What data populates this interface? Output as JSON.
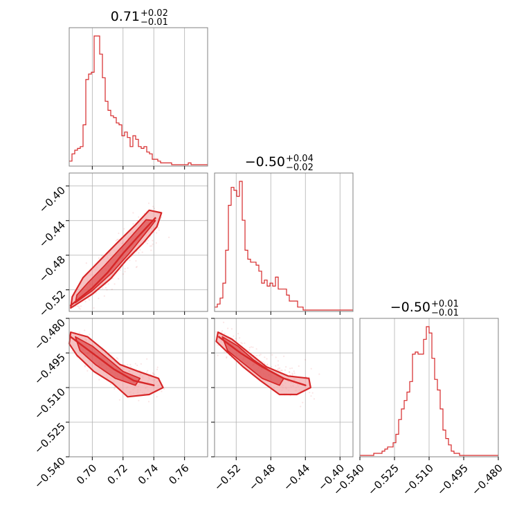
{
  "figure": {
    "color": "#d62728",
    "fill_color": "#f2a8aa",
    "grid_color": "#b0b0b0",
    "frame_color": "#808080"
  },
  "chart_data": [
    {
      "type": "histogram",
      "panel": "diag-0",
      "parameter_index": 0,
      "title": {
        "value": "0.71",
        "plus": "+0.02",
        "minus": "−0.01"
      },
      "x_range": [
        0.685,
        0.775
      ],
      "x_ticks": [
        0.7,
        0.72,
        0.74,
        0.76
      ],
      "x_tick_labels": [
        "0.70",
        "0.72",
        "0.74",
        "0.76"
      ],
      "bin_start": 0.685,
      "bin_width": 0.0018,
      "counts": [
        2,
        6,
        8,
        9,
        10,
        22,
        47,
        50,
        51,
        71,
        71,
        61,
        48,
        35,
        30,
        27,
        26,
        23,
        22,
        16,
        18,
        15,
        10,
        16,
        14,
        10,
        9,
        10,
        7,
        6,
        3,
        3,
        2,
        1,
        1,
        1,
        1,
        0,
        0,
        0,
        0,
        0,
        0,
        1,
        0,
        0,
        0,
        0,
        0,
        0
      ]
    },
    {
      "type": "histogram",
      "panel": "diag-1",
      "parameter_index": 1,
      "title": {
        "value": "−0.50",
        "plus": "+0.04",
        "minus": "−0.02"
      },
      "x_range": [
        -0.545,
        -0.385
      ],
      "x_ticks": [
        -0.52,
        -0.48,
        -0.44,
        -0.4
      ],
      "x_tick_labels": [
        "−0.52",
        "−0.48",
        "−0.44",
        "−0.40"
      ],
      "bin_start": -0.545,
      "bin_width": 0.0032,
      "counts": [
        1,
        2,
        4,
        9,
        20,
        35,
        41,
        40,
        38,
        43,
        30,
        20,
        17,
        16,
        16,
        15,
        13,
        9,
        10,
        8,
        9,
        8,
        11,
        7,
        7,
        7,
        5,
        3,
        3,
        3,
        1,
        1,
        0,
        0,
        0,
        0,
        0,
        0,
        0,
        0,
        0,
        0,
        0,
        0,
        0,
        0,
        0,
        0,
        0,
        0
      ]
    },
    {
      "type": "histogram",
      "panel": "diag-2",
      "parameter_index": 2,
      "title": {
        "value": "−0.50",
        "plus": "+0.01",
        "minus": "−0.01"
      },
      "x_range": [
        -0.54,
        -0.48
      ],
      "x_ticks": [
        -0.54,
        -0.525,
        -0.51,
        -0.495,
        -0.48
      ],
      "x_tick_labels": [
        "−0.540",
        "−0.525",
        "−0.510",
        "−0.495",
        "−0.480"
      ],
      "bin_start": -0.54,
      "bin_width": 0.0012,
      "counts": [
        0,
        0,
        0,
        0,
        0,
        1,
        1,
        1,
        2,
        3,
        4,
        4,
        6,
        10,
        17,
        22,
        26,
        30,
        35,
        48,
        49,
        48,
        48,
        55,
        61,
        58,
        46,
        36,
        31,
        22,
        12,
        8,
        5,
        2,
        1,
        1,
        0,
        0,
        0,
        0,
        0,
        0,
        0,
        0,
        0,
        0,
        0,
        0,
        0,
        0
      ]
    },
    {
      "type": "contour",
      "panel": "pair-1-0",
      "x_param": 0,
      "y_param": 1,
      "x_range": [
        0.685,
        0.775
      ],
      "y_range": [
        -0.545,
        -0.385
      ],
      "y_ticks": [
        -0.4,
        -0.44,
        -0.48,
        -0.52
      ],
      "y_tick_labels": [
        "−0.40",
        "−0.44",
        "−0.48",
        "−0.52"
      ],
      "ridge": [
        [
          0.686,
          -0.538
        ],
        [
          0.7,
          -0.518
        ],
        [
          0.71,
          -0.5
        ],
        [
          0.72,
          -0.478
        ],
        [
          0.73,
          -0.458
        ],
        [
          0.741,
          -0.437
        ]
      ],
      "contours": [
        {
          "level": "outer",
          "points": [
            [
              0.686,
              -0.541
            ],
            [
              0.7,
              -0.525
            ],
            [
              0.712,
              -0.507
            ],
            [
              0.722,
              -0.486
            ],
            [
              0.733,
              -0.466
            ],
            [
              0.742,
              -0.447
            ],
            [
              0.745,
              -0.431
            ],
            [
              0.737,
              -0.428
            ],
            [
              0.728,
              -0.445
            ],
            [
              0.716,
              -0.466
            ],
            [
              0.705,
              -0.486
            ],
            [
              0.694,
              -0.506
            ],
            [
              0.687,
              -0.528
            ]
          ]
        },
        {
          "level": "inner",
          "points": [
            [
              0.689,
              -0.535
            ],
            [
              0.7,
              -0.521
            ],
            [
              0.713,
              -0.5
            ],
            [
              0.724,
              -0.478
            ],
            [
              0.738,
              -0.447
            ],
            [
              0.741,
              -0.44
            ],
            [
              0.735,
              -0.439
            ],
            [
              0.721,
              -0.467
            ],
            [
              0.708,
              -0.492
            ],
            [
              0.697,
              -0.512
            ],
            [
              0.69,
              -0.526
            ]
          ]
        }
      ],
      "scatter_count": 280
    },
    {
      "type": "contour",
      "panel": "pair-2-0",
      "x_param": 0,
      "y_param": 2,
      "x_range": [
        0.685,
        0.775
      ],
      "y_range": [
        -0.54,
        -0.48
      ],
      "y_ticks": [
        -0.48,
        -0.495,
        -0.51,
        -0.525,
        -0.54
      ],
      "y_tick_labels": [
        "−0.480",
        "−0.495",
        "−0.510",
        "−0.525",
        "−0.540"
      ],
      "ridge": [
        [
          0.686,
          -0.488
        ],
        [
          0.7,
          -0.495
        ],
        [
          0.714,
          -0.502
        ],
        [
          0.727,
          -0.507
        ],
        [
          0.74,
          -0.509
        ]
      ],
      "contours": [
        {
          "level": "outer",
          "points": [
            [
              0.686,
              -0.486
            ],
            [
              0.697,
              -0.488
            ],
            [
              0.708,
              -0.494
            ],
            [
              0.718,
              -0.5
            ],
            [
              0.73,
              -0.503
            ],
            [
              0.743,
              -0.506
            ],
            [
              0.746,
              -0.51
            ],
            [
              0.737,
              -0.513
            ],
            [
              0.723,
              -0.514
            ],
            [
              0.713,
              -0.508
            ],
            [
              0.701,
              -0.503
            ],
            [
              0.69,
              -0.496
            ],
            [
              0.685,
              -0.491
            ]
          ]
        },
        {
          "level": "inner",
          "points": [
            [
              0.689,
              -0.488
            ],
            [
              0.7,
              -0.492
            ],
            [
              0.711,
              -0.498
            ],
            [
              0.72,
              -0.503
            ],
            [
              0.731,
              -0.506
            ],
            [
              0.728,
              -0.509
            ],
            [
              0.715,
              -0.506
            ],
            [
              0.702,
              -0.5
            ],
            [
              0.692,
              -0.494
            ]
          ]
        }
      ],
      "scatter_count": 280
    },
    {
      "type": "contour",
      "panel": "pair-2-1",
      "x_param": 1,
      "y_param": 2,
      "x_range": [
        -0.545,
        -0.385
      ],
      "y_range": [
        -0.54,
        -0.48
      ],
      "ridge": [
        [
          -0.54,
          -0.488
        ],
        [
          -0.515,
          -0.495
        ],
        [
          -0.49,
          -0.501
        ],
        [
          -0.465,
          -0.506
        ],
        [
          -0.44,
          -0.509
        ]
      ],
      "contours": [
        {
          "level": "outer",
          "points": [
            [
              -0.541,
              -0.486
            ],
            [
              -0.525,
              -0.489
            ],
            [
              -0.505,
              -0.495
            ],
            [
              -0.485,
              -0.501
            ],
            [
              -0.46,
              -0.505
            ],
            [
              -0.436,
              -0.506
            ],
            [
              -0.434,
              -0.51
            ],
            [
              -0.45,
              -0.513
            ],
            [
              -0.47,
              -0.513
            ],
            [
              -0.492,
              -0.507
            ],
            [
              -0.512,
              -0.501
            ],
            [
              -0.532,
              -0.494
            ],
            [
              -0.543,
              -0.49
            ]
          ]
        },
        {
          "level": "inner",
          "points": [
            [
              -0.536,
              -0.488
            ],
            [
              -0.518,
              -0.492
            ],
            [
              -0.5,
              -0.498
            ],
            [
              -0.48,
              -0.503
            ],
            [
              -0.465,
              -0.506
            ],
            [
              -0.47,
              -0.509
            ],
            [
              -0.49,
              -0.506
            ],
            [
              -0.51,
              -0.5
            ],
            [
              -0.53,
              -0.494
            ]
          ]
        }
      ],
      "scatter_count": 280
    }
  ]
}
